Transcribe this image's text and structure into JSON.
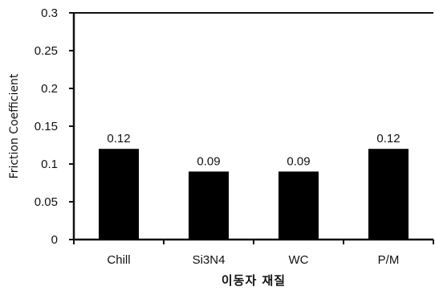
{
  "chart_data": {
    "type": "bar",
    "title": "",
    "xlabel": "이동자 재질",
    "ylabel": "Friction Coefficient",
    "categories": [
      "Chill",
      "Si3N4",
      "WC",
      "P/M"
    ],
    "values": [
      0.12,
      0.09,
      0.09,
      0.12
    ],
    "data_labels": [
      "0.12",
      "0.09",
      "0.09",
      "0.12"
    ],
    "ylim": [
      0,
      0.3
    ],
    "yticks": [
      0,
      0.05,
      0.1,
      0.15,
      0.2,
      0.25,
      0.3
    ],
    "ytick_labels": [
      "0",
      "0.05",
      "0.1",
      "0.15",
      "0.2",
      "0.25",
      "0.3"
    ],
    "grid": false,
    "legend": "none",
    "bar_color": "#000000",
    "axis_color": "#111111"
  }
}
